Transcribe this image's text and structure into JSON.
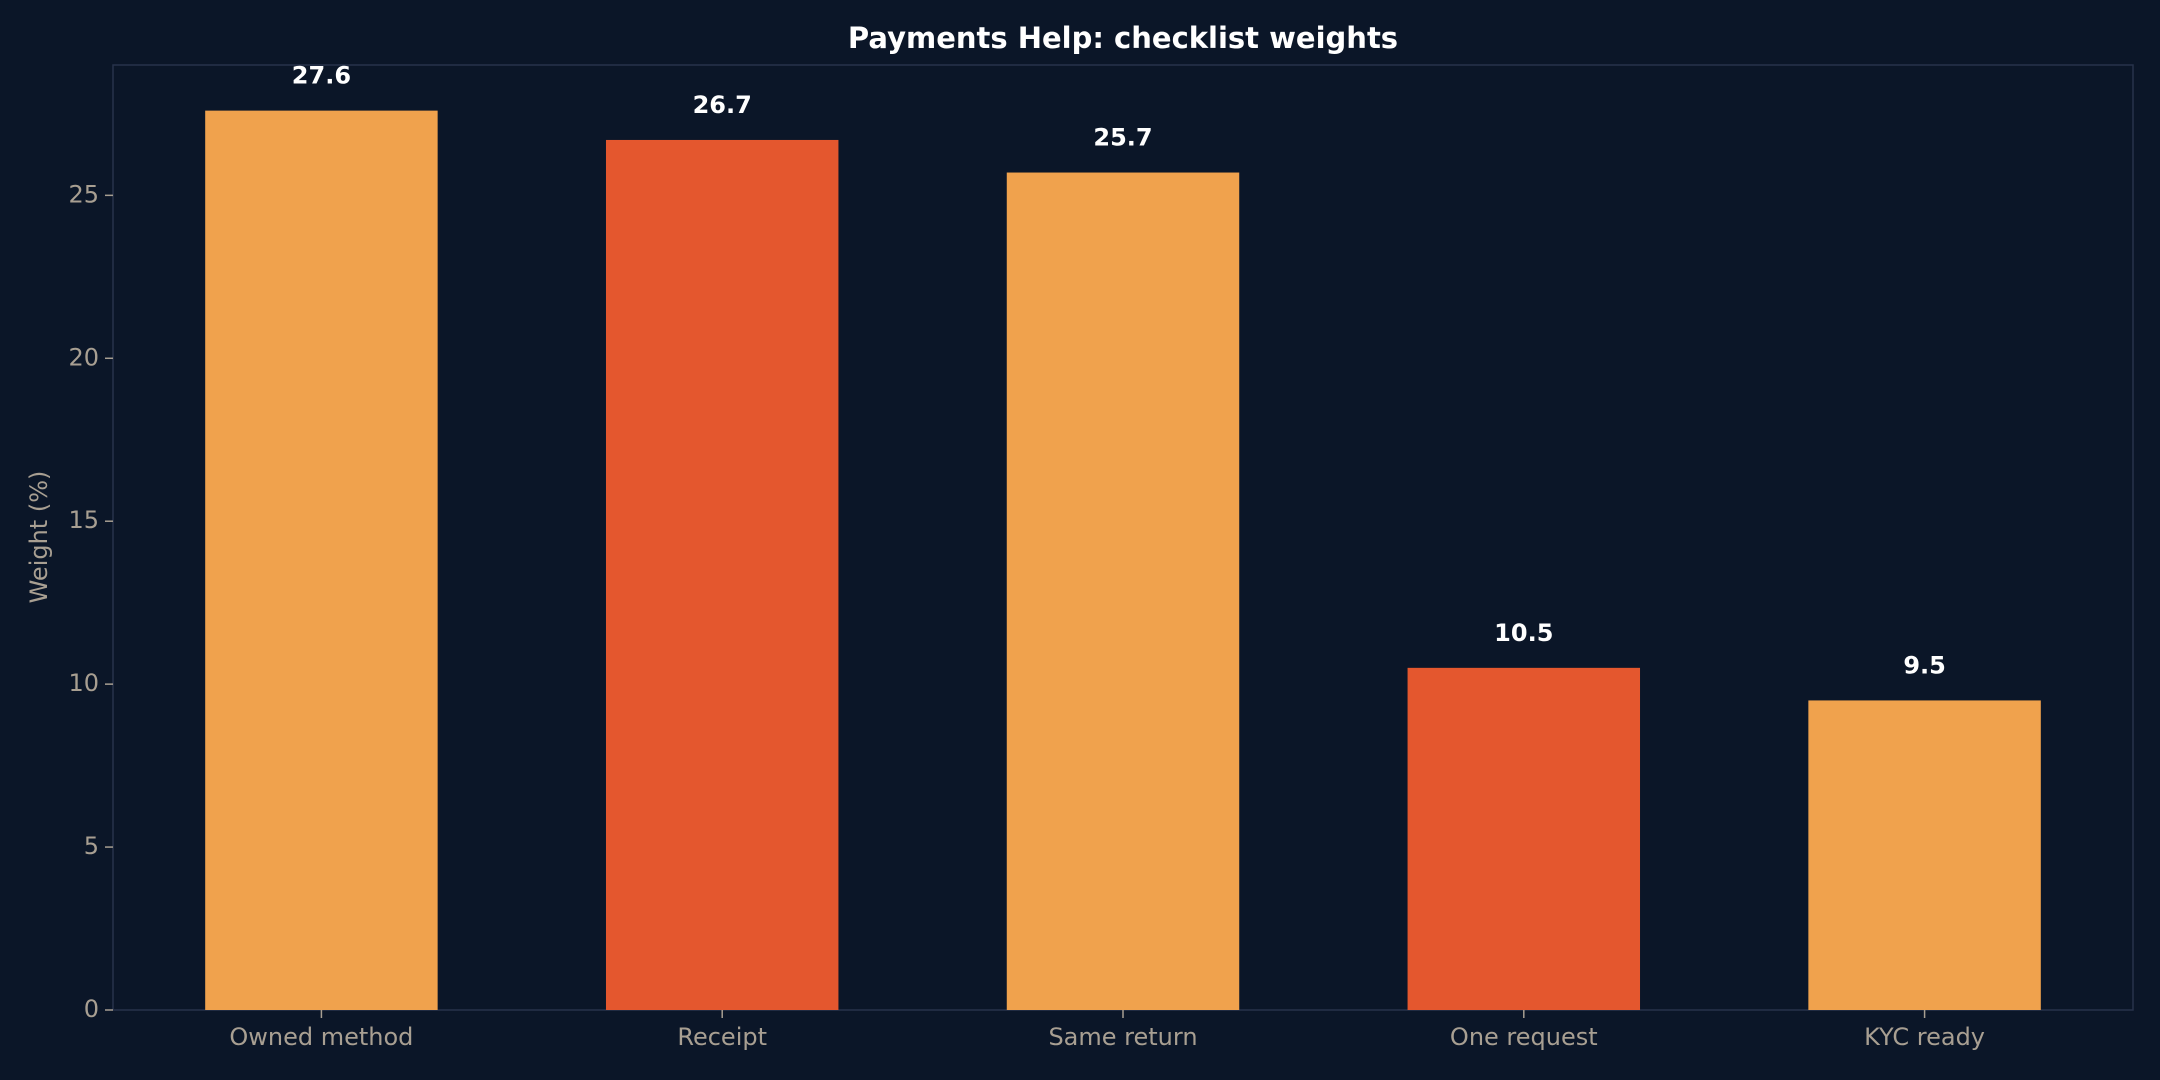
{
  "chart_data": {
    "type": "bar",
    "title": "Payments Help: checklist weights",
    "y_label": "Weight (%)",
    "categories": [
      "Owned method",
      "Receipt",
      "Same return",
      "One request",
      "KYC ready"
    ],
    "values": [
      27.6,
      26.7,
      25.7,
      10.5,
      9.5
    ],
    "colors": [
      "#f0a24d",
      "#e4572e",
      "#f0a24d",
      "#e4572e",
      "#f0a24d"
    ],
    "ylim": [
      0,
      29
    ],
    "yticks": [
      0,
      5,
      10,
      15,
      20,
      25
    ],
    "grid": false
  }
}
